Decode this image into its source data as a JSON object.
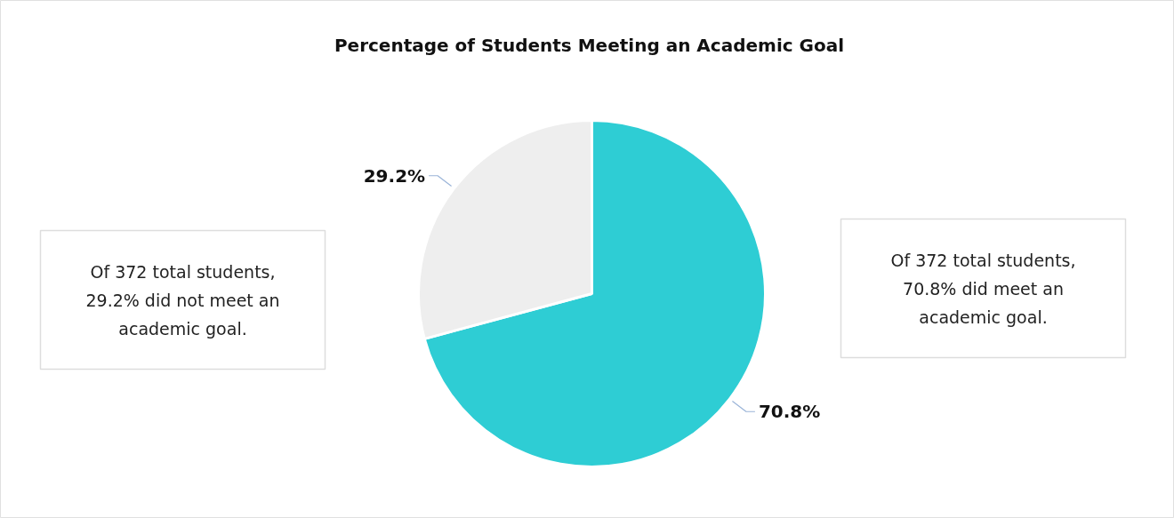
{
  "chart_data": {
    "type": "pie",
    "title": "Percentage of Students Meeting an Academic Goal",
    "categories": [
      null,
      null
    ],
    "values": [
      70.8,
      29.2
    ],
    "colors": [
      "#2ecdd4",
      "#eeeeee"
    ],
    "value_labels": [
      "70.8%",
      "29.2%"
    ],
    "annotations": [
      "Of 372 total students, 29.2% did not meet an academic goal.",
      "Of 372 total students, 70.8% did meet an academic goal."
    ]
  }
}
